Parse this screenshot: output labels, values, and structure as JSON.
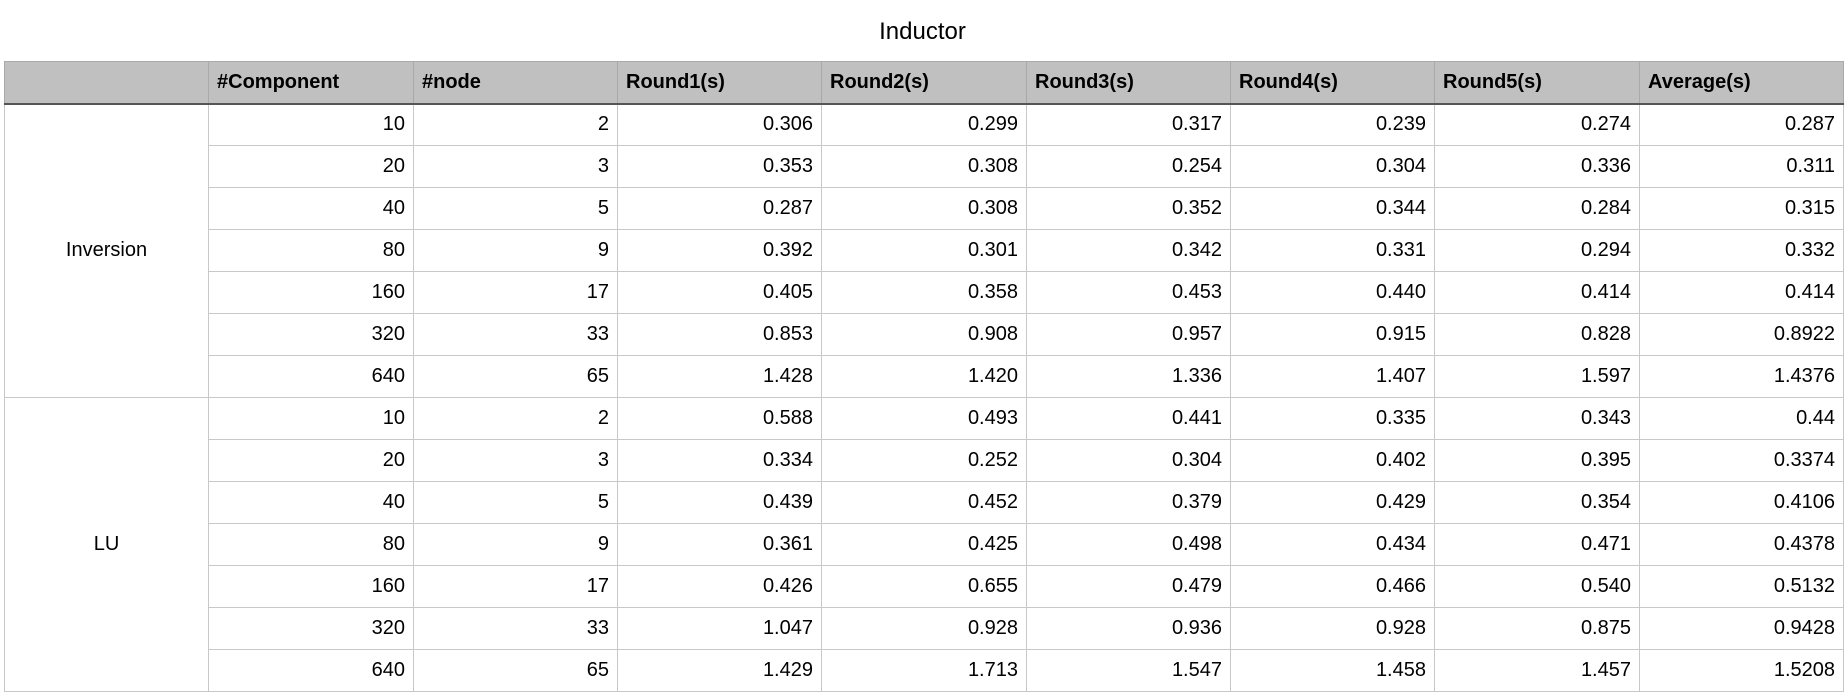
{
  "title": "Inductor",
  "header": {
    "columns": [
      "",
      "#Component",
      "#node",
      "Round1(s)",
      "Round2(s)",
      "Round3(s)",
      "Round4(s)",
      "Round5(s)",
      "Average(s)"
    ]
  },
  "groups": [
    {
      "label": "Inversion",
      "rows": [
        [
          "10",
          "2",
          "0.306",
          "0.299",
          "0.317",
          "0.239",
          "0.274",
          "0.287"
        ],
        [
          "20",
          "3",
          "0.353",
          "0.308",
          "0.254",
          "0.304",
          "0.336",
          "0.311"
        ],
        [
          "40",
          "5",
          "0.287",
          "0.308",
          "0.352",
          "0.344",
          "0.284",
          "0.315"
        ],
        [
          "80",
          "9",
          "0.392",
          "0.301",
          "0.342",
          "0.331",
          "0.294",
          "0.332"
        ],
        [
          "160",
          "17",
          "0.405",
          "0.358",
          "0.453",
          "0.440",
          "0.414",
          "0.414"
        ],
        [
          "320",
          "33",
          "0.853",
          "0.908",
          "0.957",
          "0.915",
          "0.828",
          "0.8922"
        ],
        [
          "640",
          "65",
          "1.428",
          "1.420",
          "1.336",
          "1.407",
          "1.597",
          "1.4376"
        ]
      ]
    },
    {
      "label": "LU",
      "rows": [
        [
          "10",
          "2",
          "0.588",
          "0.493",
          "0.441",
          "0.335",
          "0.343",
          "0.44"
        ],
        [
          "20",
          "3",
          "0.334",
          "0.252",
          "0.304",
          "0.402",
          "0.395",
          "0.3374"
        ],
        [
          "40",
          "5",
          "0.439",
          "0.452",
          "0.379",
          "0.429",
          "0.354",
          "0.4106"
        ],
        [
          "80",
          "9",
          "0.361",
          "0.425",
          "0.498",
          "0.434",
          "0.471",
          "0.4378"
        ],
        [
          "160",
          "17",
          "0.426",
          "0.655",
          "0.479",
          "0.466",
          "0.540",
          "0.5132"
        ],
        [
          "320",
          "33",
          "1.047",
          "0.928",
          "0.936",
          "0.928",
          "0.875",
          "0.9428"
        ],
        [
          "640",
          "65",
          "1.429",
          "1.713",
          "1.547",
          "1.458",
          "1.457",
          "1.5208"
        ]
      ]
    }
  ]
}
